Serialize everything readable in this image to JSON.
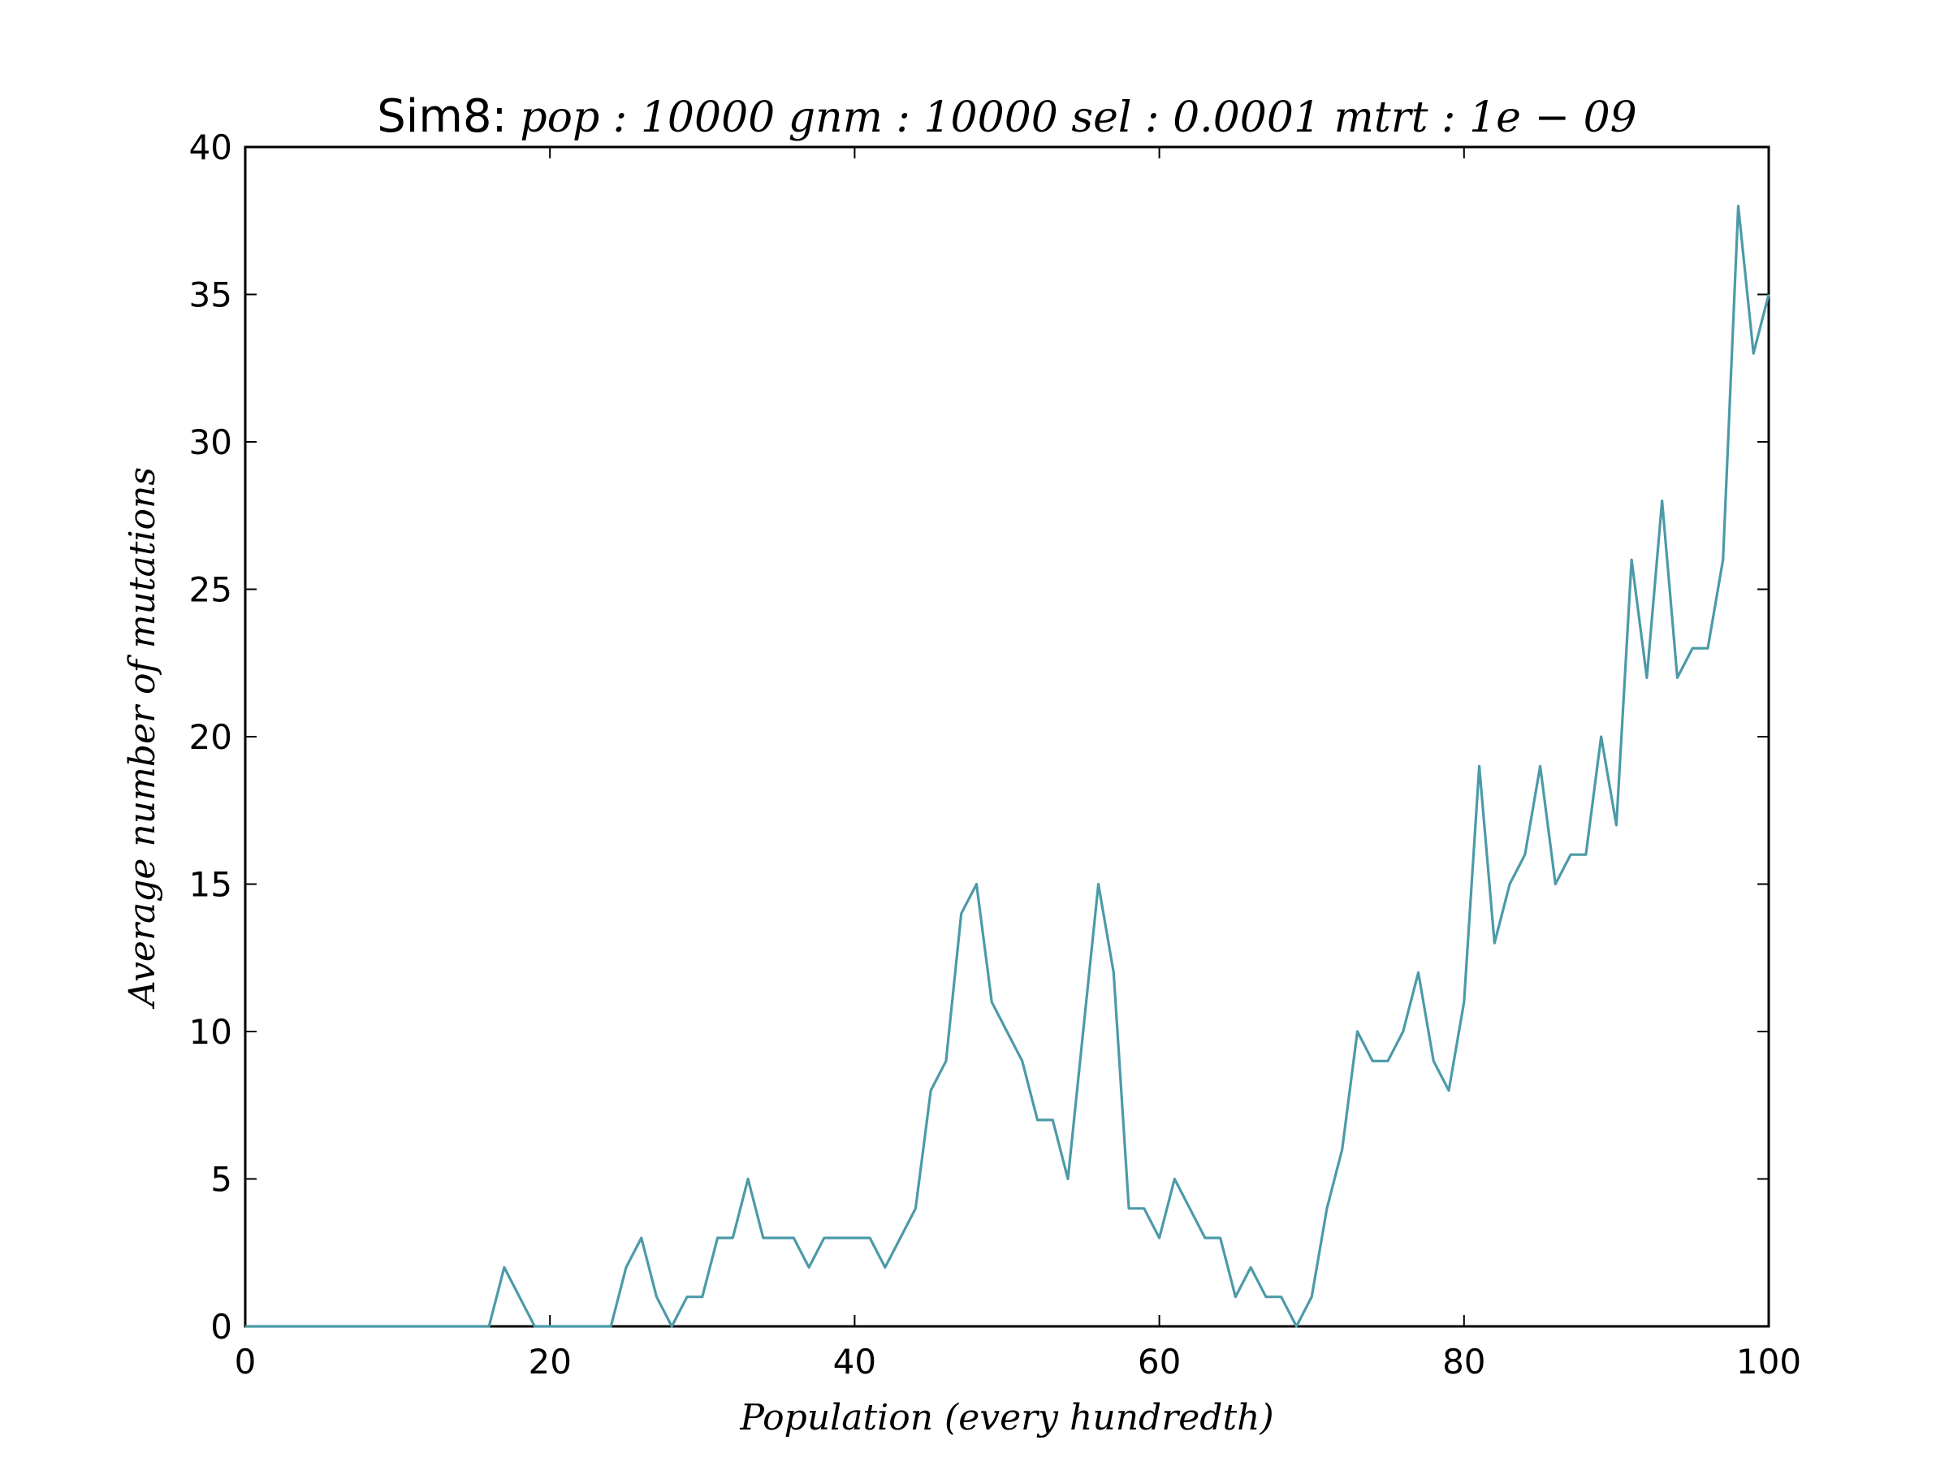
{
  "chart_data": {
    "type": "line",
    "title": {
      "prefix": "Sim8:",
      "params": "pop : 10000  gnm : 10000  sel : 0.0001  mtrt : 1e − 09"
    },
    "xlabel": "Population (every hundredth)",
    "ylabel": "Average number of mutations",
    "xlim": [
      0,
      100
    ],
    "ylim": [
      0,
      40
    ],
    "xticks": [
      0,
      20,
      40,
      60,
      80,
      100
    ],
    "xtick_labels": [
      "0",
      "20",
      "40",
      "60",
      "80",
      "100"
    ],
    "yticks": [
      0,
      5,
      10,
      15,
      20,
      25,
      30,
      35,
      40
    ],
    "ytick_labels": [
      "0",
      "5",
      "10",
      "15",
      "20",
      "25",
      "30",
      "35",
      "40"
    ],
    "grid": false,
    "series": [
      {
        "color": "#4c9aa8",
        "x": [
          0,
          1,
          2,
          3,
          4,
          5,
          6,
          7,
          8,
          9,
          10,
          11,
          12,
          13,
          14,
          15,
          16,
          17,
          18,
          19,
          20,
          21,
          22,
          23,
          24,
          25,
          26,
          27,
          28,
          29,
          30,
          31,
          32,
          33,
          34,
          35,
          36,
          37,
          38,
          39,
          40,
          41,
          42,
          43,
          44,
          45,
          46,
          47,
          48,
          49,
          50,
          51,
          52,
          53,
          54,
          55,
          56,
          57,
          58,
          59,
          60,
          61,
          62,
          63,
          64,
          65,
          66,
          67,
          68,
          69,
          70,
          71,
          72,
          73,
          74,
          75,
          76,
          77,
          78,
          79,
          80,
          81,
          82,
          83,
          84,
          85,
          86,
          87,
          88,
          89,
          90,
          91,
          92,
          93,
          94,
          95,
          96,
          97,
          98,
          99,
          100
        ],
        "y": [
          0,
          0,
          0,
          0,
          0,
          0,
          0,
          0,
          0,
          0,
          0,
          0,
          0,
          0,
          0,
          0,
          0,
          2,
          1,
          0,
          0,
          0,
          0,
          0,
          0,
          2,
          3,
          1,
          0,
          1,
          1,
          3,
          3,
          5,
          3,
          3,
          3,
          2,
          3,
          3,
          3,
          3,
          2,
          3,
          4,
          8,
          9,
          14,
          15,
          11,
          10,
          9,
          7,
          7,
          5,
          10,
          15,
          12,
          4,
          4,
          3,
          5,
          4,
          3,
          3,
          1,
          2,
          1,
          1,
          0,
          1,
          4,
          6,
          10,
          9,
          9,
          10,
          12,
          9,
          8,
          11,
          19,
          13,
          15,
          16,
          19,
          15,
          16,
          16,
          20,
          17,
          26,
          22,
          28,
          22,
          23,
          23,
          26,
          38,
          33,
          35
        ]
      }
    ]
  }
}
